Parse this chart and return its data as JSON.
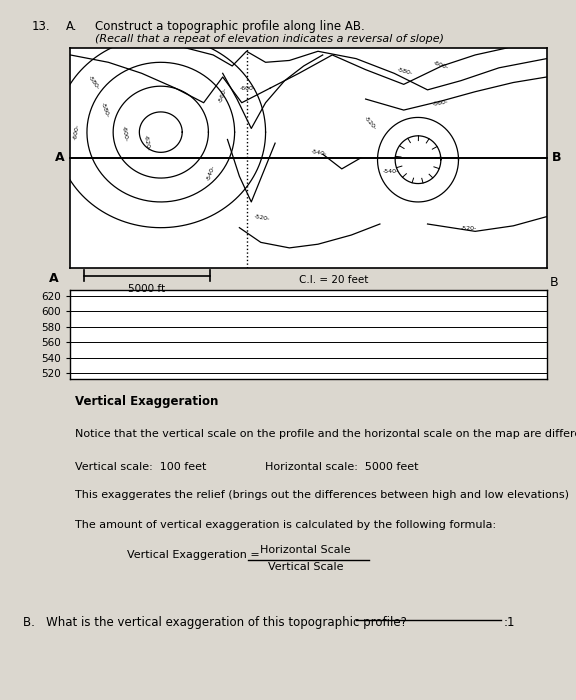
{
  "title_number": "13.",
  "title_letter": "A.",
  "title_main": "Construct a topographic profile along line AB.",
  "title_sub": "(Recall that a repeat of elevation indicates a reversal of slope)",
  "map_ci_label": "C.I. = 20 feet",
  "scale_label": "5000 ft",
  "profile_yticks": [
    520,
    540,
    560,
    580,
    600,
    620
  ],
  "ve_title": "Vertical Exaggeration",
  "ve_notice": "Notice that the vertical scale on the profile and the horizontal scale on the map are different.",
  "ve_vertical": "Vertical scale:  100 feet",
  "ve_horizontal": "Horizontal scale:  5000 feet",
  "ve_exaggerates": "This exaggerates the relief (brings out the differences between high and low elevations)",
  "ve_amount": "The amount of vertical exaggeration is calculated by the following formula:",
  "ve_formula_left": "Vertical Exaggeration = ",
  "ve_formula_num": "Horizontal Scale",
  "ve_formula_den": "Vertical Scale",
  "question_B": "B.   What is the vertical exaggeration of this topographic profile?",
  "colon_one": ":1",
  "paper_color": "#dbd7cf",
  "map_bg": "#ffffff"
}
